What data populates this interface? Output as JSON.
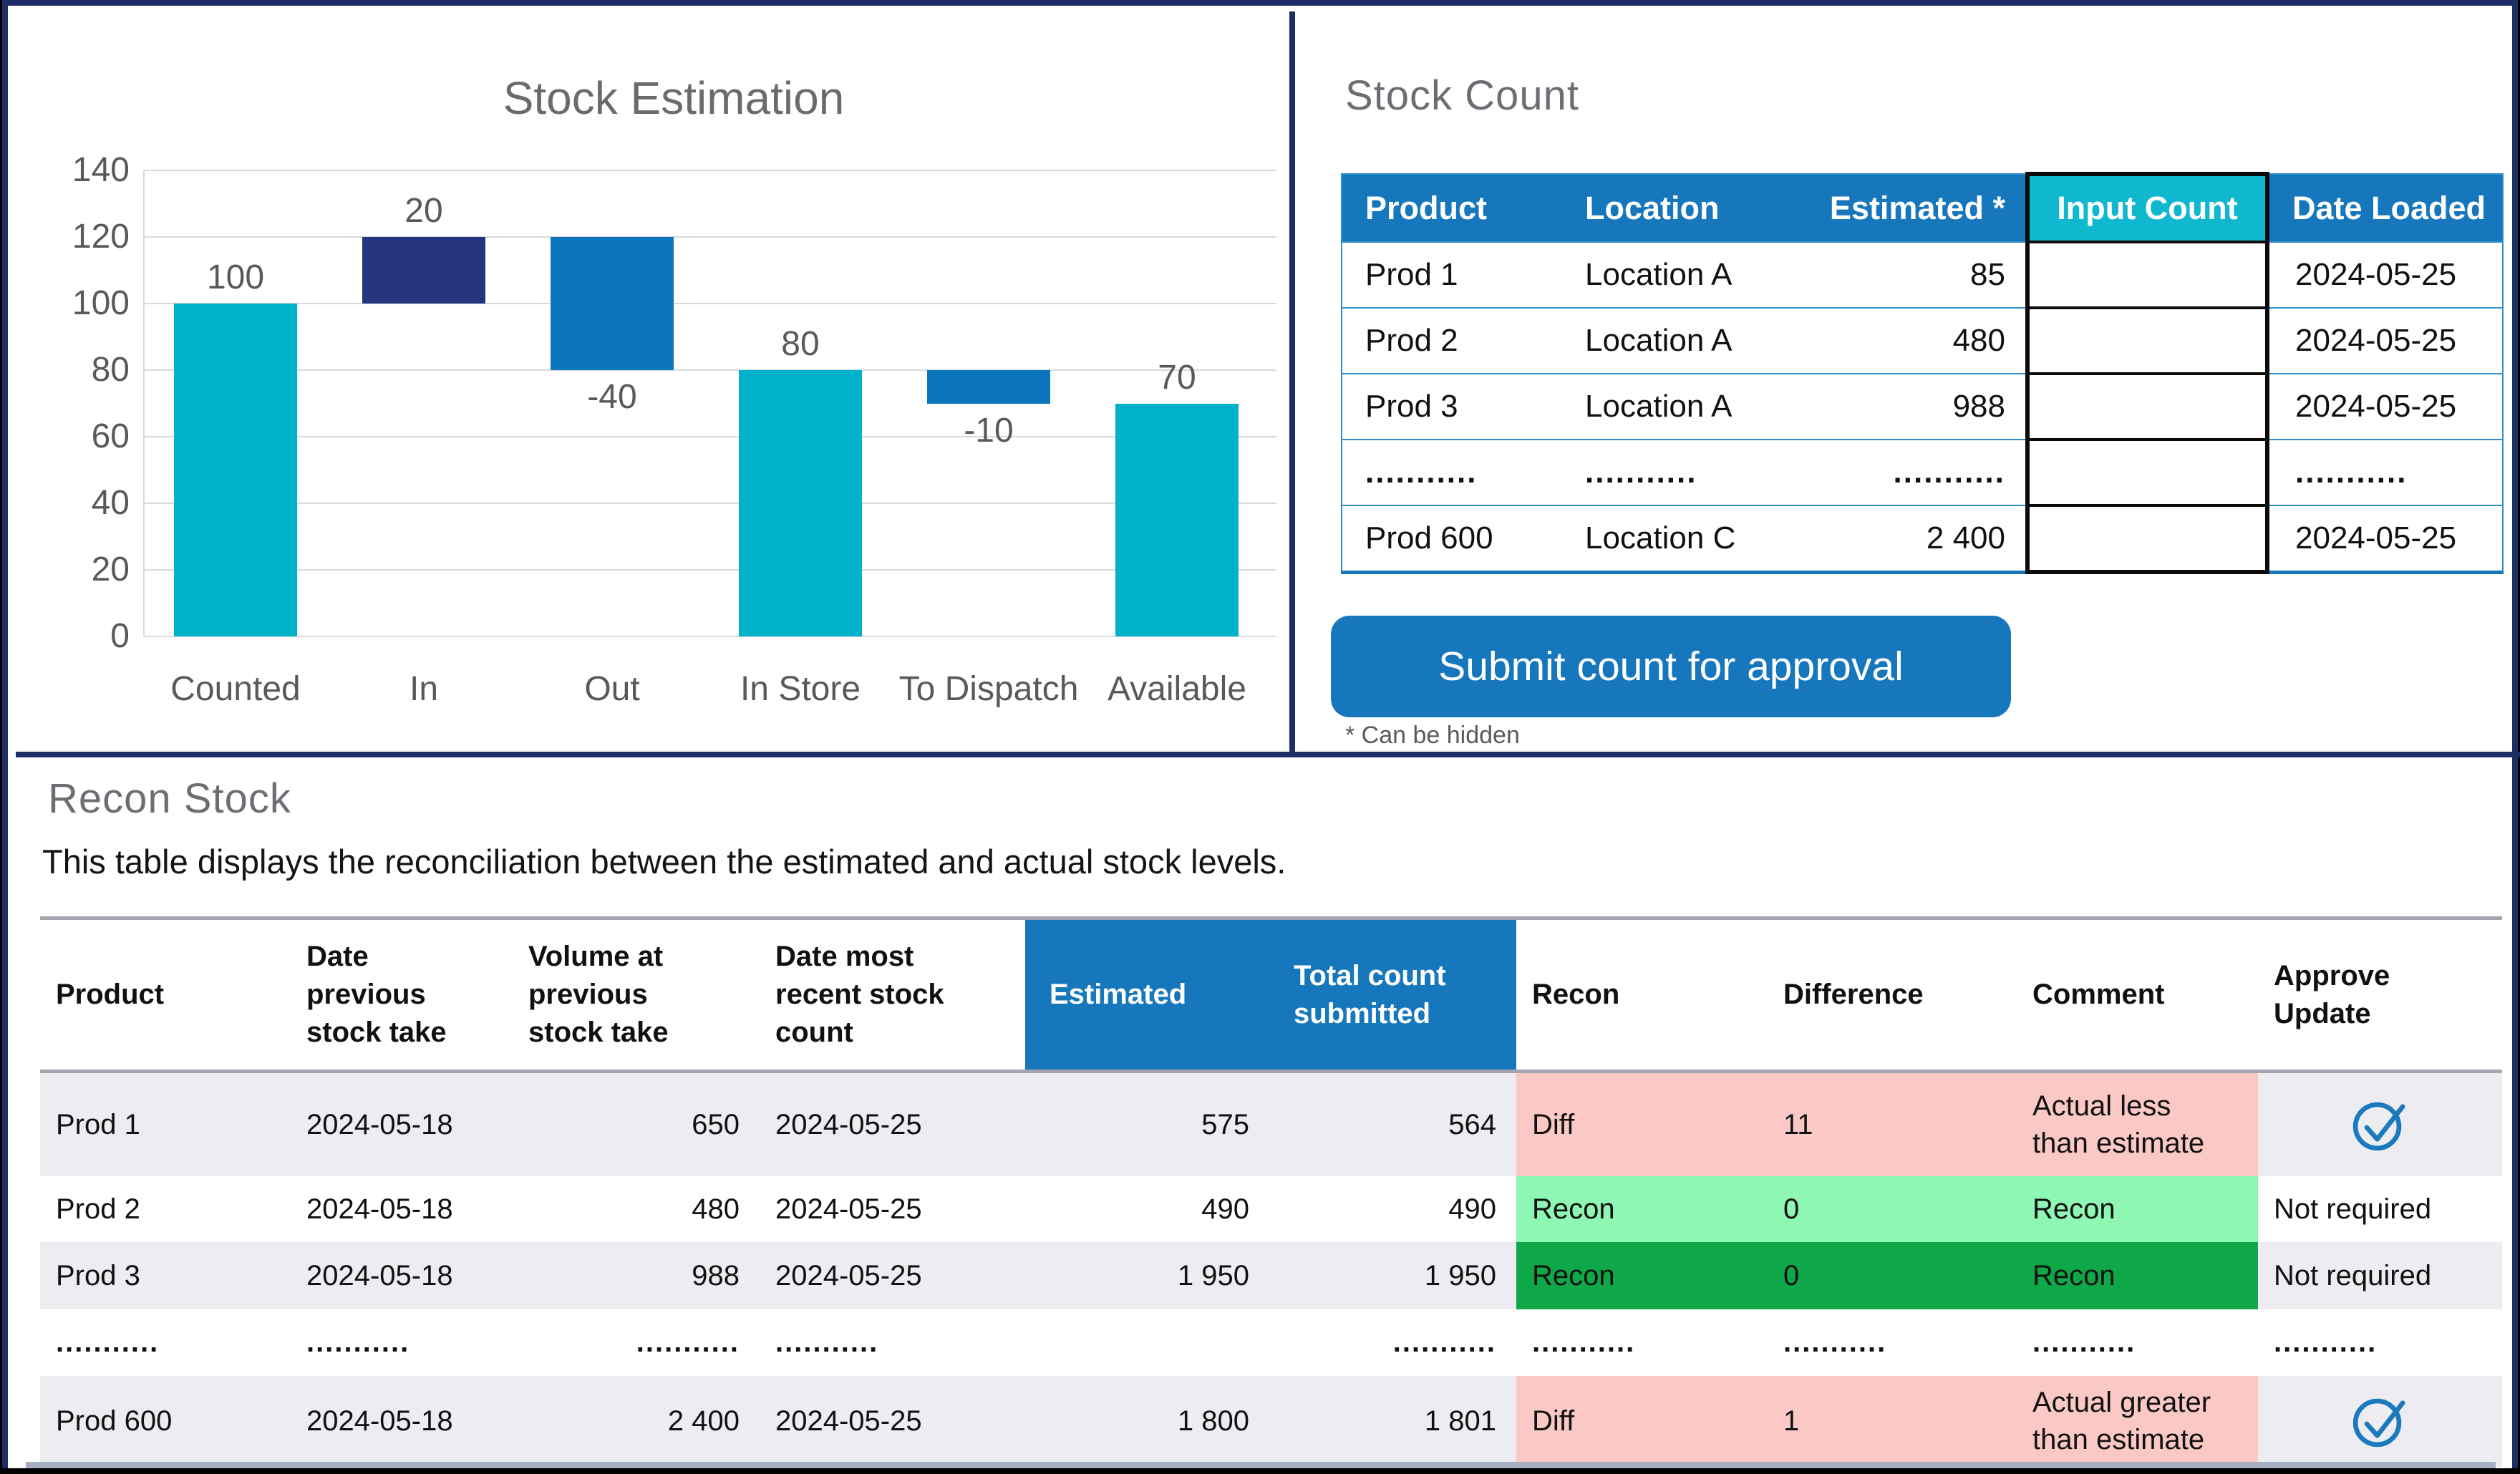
{
  "colors": {
    "frame_navy": "#1F2D66",
    "accent_blue": "#1677BD",
    "input_cyan": "#0FB7CF",
    "chart_teal": "#00B2C9",
    "chart_navy": "#24357D",
    "chart_blue": "#0B76BB",
    "status_pink": "#FAC9C6",
    "status_light_green": "#8DF7B3",
    "status_dark_green": "#0FA848",
    "row_stripe": "#ECECF1",
    "header_line_gray": "#A5A5B0",
    "text_gray": "#595959"
  },
  "panels": {
    "stock_estimation": {
      "title": "Stock Estimation",
      "chart_data": {
        "type": "bar",
        "subtype": "waterfall",
        "title": "Stock Estimation",
        "categories": [
          "Counted",
          "In",
          "Out",
          "In Store",
          "To Dispatch",
          "Available"
        ],
        "values": [
          100,
          20,
          -40,
          80,
          -10,
          70
        ],
        "bar_kinds": [
          "total",
          "increase",
          "decrease",
          "total",
          "decrease",
          "total"
        ],
        "segments": [
          [
            0,
            100
          ],
          [
            100,
            120
          ],
          [
            80,
            120
          ],
          [
            0,
            80
          ],
          [
            70,
            80
          ],
          [
            0,
            70
          ]
        ],
        "labels": [
          "100",
          "20",
          "-40",
          "80",
          "-10",
          "70"
        ],
        "label_side": [
          "above",
          "above",
          "below",
          "above",
          "below",
          "above"
        ],
        "xlabel": "",
        "ylabel": "",
        "ylim": [
          0,
          140
        ],
        "y_ticks": [
          0,
          20,
          40,
          60,
          80,
          100,
          120,
          140
        ],
        "grid": true,
        "legend": "none"
      }
    },
    "stock_count": {
      "title": "Stock Count",
      "table": {
        "columns": [
          "Product",
          "Location",
          "Estimated *",
          "Input Count",
          "Date Loaded"
        ],
        "rows": [
          {
            "product": "Prod 1",
            "location": "Location A",
            "estimated": "85",
            "input_count": "",
            "date_loaded": "2024-05-25"
          },
          {
            "product": "Prod 2",
            "location": "Location A",
            "estimated": "480",
            "input_count": "",
            "date_loaded": "2024-05-25"
          },
          {
            "product": "Prod 3",
            "location": "Location A",
            "estimated": "988",
            "input_count": "",
            "date_loaded": "2024-05-25"
          },
          {
            "product": "...........",
            "location": "...........",
            "estimated": "...........",
            "input_count": "",
            "date_loaded": "..........."
          },
          {
            "product": "Prod 600",
            "location": "Location C",
            "estimated": "2 400",
            "input_count": "",
            "date_loaded": "2024-05-25"
          }
        ]
      },
      "button_label": "Submit count for approval",
      "footnote": "* Can be hidden"
    },
    "recon_stock": {
      "title": "Recon Stock",
      "description": "This table displays the reconciliation between the estimated and actual stock levels.",
      "table": {
        "columns": [
          "Product",
          "Date\nprevious\nstock take",
          "Volume at\nprevious\nstock take",
          "Date most\nrecent stock\ncount",
          "Estimated",
          "Total count\nsubmitted",
          "Recon",
          "Difference",
          "Comment",
          "Approve\nUpdate"
        ],
        "rows": [
          {
            "product": "Prod 1",
            "date_prev": "2024-05-18",
            "volume_prev": "650",
            "date_recent": "2024-05-25",
            "estimated": "575",
            "total_count": "564",
            "recon": "Diff",
            "difference": "11",
            "comment": "Actual less\nthan estimate",
            "approve": "",
            "approve_type": "icon",
            "status": "diff"
          },
          {
            "product": "Prod 2",
            "date_prev": "2024-05-18",
            "volume_prev": "480",
            "date_recent": "2024-05-25",
            "estimated": "490",
            "total_count": "490",
            "recon": "Recon",
            "difference": "0",
            "comment": "Recon",
            "approve": "Not required",
            "approve_type": "text",
            "status": "recon-light"
          },
          {
            "product": "Prod 3",
            "date_prev": "2024-05-18",
            "volume_prev": "988",
            "date_recent": "2024-05-25",
            "estimated": "1 950",
            "total_count": "1 950",
            "recon": "Recon",
            "difference": "0",
            "comment": "Recon",
            "approve": "Not required",
            "approve_type": "text",
            "status": "recon-dark"
          },
          {
            "product": "...........",
            "date_prev": "...........",
            "volume_prev": "...........",
            "date_recent": "...........",
            "estimated": "",
            "total_count": "...........",
            "recon": "...........",
            "difference": "...........",
            "comment": "...........",
            "approve": "...........",
            "approve_type": "dots",
            "status": ""
          },
          {
            "product": "Prod 600",
            "date_prev": "2024-05-18",
            "volume_prev": "2 400",
            "date_recent": "2024-05-25",
            "estimated": "1 800",
            "total_count": "1 801",
            "recon": "Diff",
            "difference": "1",
            "comment": "Actual greater\nthan estimate",
            "approve": "",
            "approve_type": "icon",
            "status": "diff"
          }
        ]
      }
    }
  }
}
